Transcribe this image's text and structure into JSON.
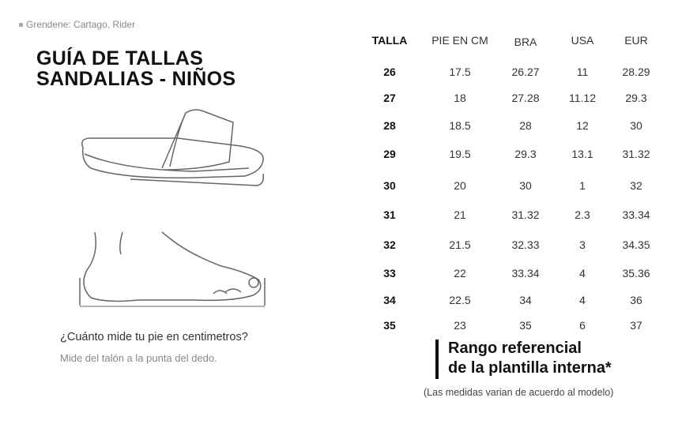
{
  "brand": "Grendene: Cartago, Rider",
  "title_line1": "GUÍA DE TALLAS",
  "title_line2": "SANDALIAS - NIÑOS",
  "question": "¿Cuánto mide tu pie en centimetros?",
  "hint": "Mide del talón a la punta del dedo.",
  "table": {
    "headers": [
      "TALLA",
      "PIE EN CM",
      "BRA",
      "USA",
      "EUR"
    ],
    "rows": [
      [
        "26",
        "17.5",
        "26.27",
        "11",
        "28.29"
      ],
      [
        "27",
        "18",
        "27.28",
        "11.12",
        "29.3"
      ],
      [
        "28",
        "18.5",
        "28",
        "12",
        "30"
      ],
      [
        "29",
        "19.5",
        "29.3",
        "13.1",
        "31.32"
      ],
      [
        "30",
        "20",
        "30",
        "1",
        "32"
      ],
      [
        "31",
        "21",
        "31.32",
        "2.3",
        "33.34"
      ],
      [
        "32",
        "21.5",
        "32.33",
        "3",
        "34.35"
      ],
      [
        "33",
        "22",
        "33.34",
        "4",
        "35.36"
      ],
      [
        "34",
        "22.5",
        "34",
        "4",
        "36"
      ],
      [
        "35",
        "23",
        "35",
        "6",
        "37"
      ]
    ]
  },
  "range_line1": "Rango referencial",
  "range_line2": "de la plantilla interna*",
  "note": "(Las medidas varian de acuerdo al modelo)"
}
